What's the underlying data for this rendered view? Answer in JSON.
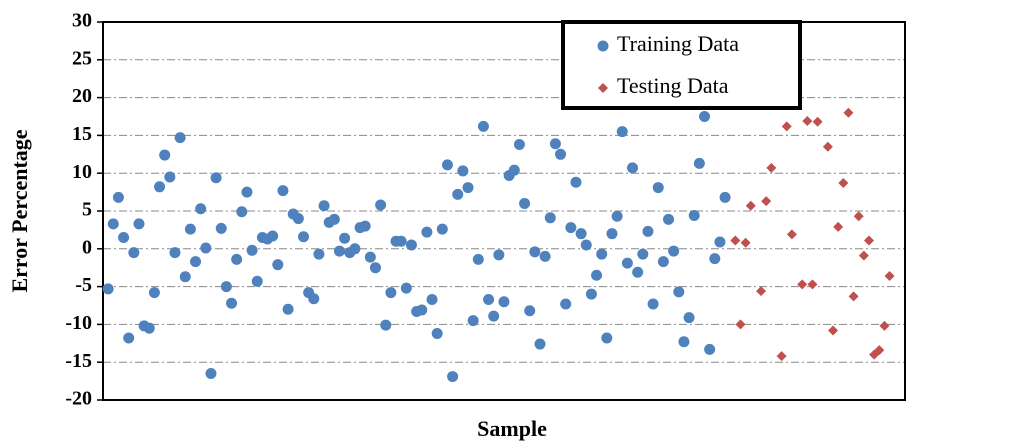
{
  "chart_data": {
    "type": "scatter",
    "x_label": "Sample",
    "y_label": "Error Percentage",
    "xlim": [
      0,
      156
    ],
    "ylim": [
      -20,
      30
    ],
    "yticks": [
      -20,
      -15,
      -10,
      -5,
      0,
      5,
      10,
      15,
      20,
      25,
      30
    ],
    "grid": true,
    "legend": "top-right",
    "series": [
      {
        "name": "Training Data",
        "color": "#4f81bd",
        "marker": "circle",
        "x": [
          1,
          2,
          3,
          4,
          5,
          6,
          7,
          8,
          9,
          10,
          11,
          12,
          13,
          14,
          15,
          16,
          17,
          18,
          19,
          20,
          21,
          22,
          23,
          24,
          25,
          26,
          27,
          28,
          29,
          30,
          31,
          32,
          33,
          34,
          35,
          36,
          37,
          38,
          39,
          40,
          41,
          42,
          43,
          44,
          45,
          46,
          47,
          48,
          49,
          50,
          51,
          52,
          53,
          54,
          55,
          56,
          57,
          58,
          59,
          60,
          61,
          62,
          63,
          64,
          65,
          66,
          67,
          68,
          69,
          70,
          71,
          72,
          73,
          74,
          75,
          76,
          77,
          78,
          79,
          80,
          81,
          82,
          83,
          84,
          85,
          86,
          87,
          88,
          89,
          90,
          91,
          92,
          93,
          94,
          95,
          96,
          97,
          98,
          99,
          100,
          101,
          102,
          103,
          104,
          105,
          106,
          107,
          108,
          109,
          110,
          111,
          112,
          113,
          114,
          115,
          116,
          117,
          118,
          119,
          120,
          121
        ],
        "values": [
          -5.3,
          3.3,
          6.8,
          1.5,
          -11.8,
          -0.5,
          3.3,
          -10.2,
          -10.5,
          -5.8,
          8.2,
          12.4,
          9.5,
          -0.5,
          14.7,
          -3.7,
          2.6,
          -1.7,
          5.3,
          0.1,
          -16.5,
          9.4,
          2.7,
          -5.0,
          -7.2,
          -1.4,
          4.9,
          7.5,
          -0.2,
          -4.3,
          1.5,
          1.3,
          1.7,
          -2.1,
          7.7,
          -8.0,
          4.6,
          4.0,
          1.6,
          -5.8,
          -6.6,
          -0.7,
          5.7,
          3.5,
          3.9,
          -0.3,
          1.4,
          -0.5,
          0.0,
          2.8,
          3.0,
          -1.1,
          -2.5,
          5.8,
          -10.1,
          -5.8,
          1.0,
          1.0,
          -5.2,
          0.5,
          -8.3,
          -8.1,
          2.2,
          -6.7,
          -11.2,
          2.6,
          11.1,
          -16.9,
          7.2,
          10.3,
          8.1,
          -9.5,
          -1.4,
          16.2,
          -6.7,
          -8.9,
          -0.8,
          -7.0,
          9.7,
          10.4,
          13.8,
          6.0,
          -8.2,
          -0.4,
          -12.6,
          -1.0,
          4.1,
          13.9,
          12.5,
          -7.3,
          2.8,
          8.8,
          2.0,
          0.5,
          -6.0,
          -3.5,
          -0.7,
          -11.8,
          2.0,
          4.3,
          15.5,
          -1.9,
          10.7,
          -3.1,
          -0.7,
          2.3,
          -7.3,
          8.1,
          -1.7,
          3.9,
          -0.3,
          -5.7,
          -12.3,
          -9.1,
          4.4,
          11.3,
          17.5,
          -13.3,
          -1.3,
          0.9,
          6.8
        ]
      },
      {
        "name": "Testing Data",
        "color": "#c0504d",
        "marker": "diamond",
        "x": [
          123,
          124,
          125,
          126,
          128,
          129,
          130,
          132,
          133,
          134,
          136,
          137,
          138,
          139,
          141,
          142,
          143,
          144,
          145,
          146,
          147,
          148,
          149,
          150,
          151,
          152,
          153
        ],
        "values": [
          1.1,
          -10.0,
          0.8,
          5.7,
          -5.6,
          6.3,
          10.7,
          -14.2,
          16.2,
          1.9,
          -4.7,
          16.9,
          -4.7,
          16.8,
          13.5,
          -10.8,
          2.9,
          8.7,
          18.0,
          -6.3,
          4.3,
          -0.9,
          1.1,
          -14.0,
          -13.4,
          -10.2,
          -3.6
        ]
      }
    ]
  }
}
